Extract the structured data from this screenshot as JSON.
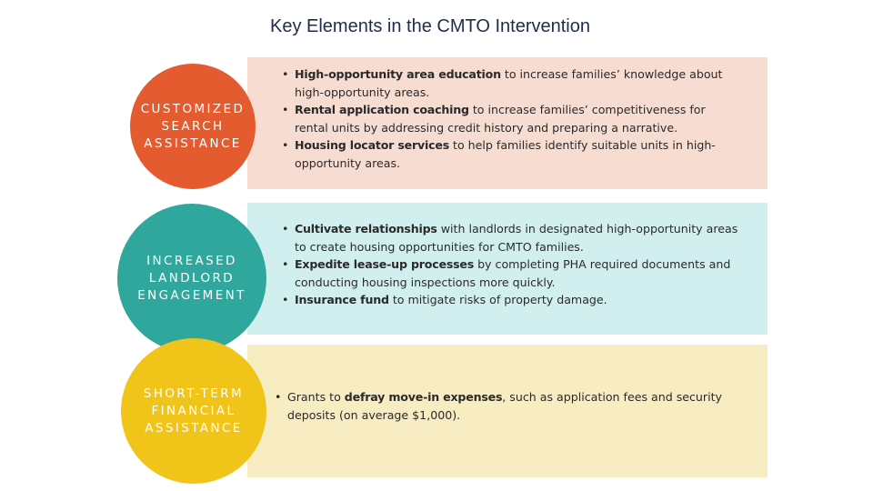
{
  "title": "Key Elements in the CMTO Intervention",
  "rows": [
    {
      "label": "CUSTOMIZED\nSEARCH\nASSISTANCE",
      "color": "#e35b2e",
      "band_color": "#f7dcd2",
      "bullets": [
        {
          "bold": "High-opportunity area education",
          "text": " to increase families’ knowledge about high-opportunity areas."
        },
        {
          "bold": "Rental application coaching",
          "text": " to increase families’ competitiveness for rental units by addressing credit history and preparing a narrative."
        },
        {
          "bold": "Housing locator services",
          "text": " to help families identify suitable units in high-opportunity areas."
        }
      ]
    },
    {
      "label": "INCREASED\nLANDLORD\nENGAGEMENT",
      "color": "#2fa79d",
      "band_color": "#d2efef",
      "bullets": [
        {
          "bold": "Cultivate relationships",
          "text": " with landlords in designated high-opportunity areas to create housing opportunities for CMTO families."
        },
        {
          "bold": "Expedite lease-up processes",
          "text": " by completing PHA required documents and conducting housing inspections more quickly."
        },
        {
          "bold": "Insurance fund",
          "text": " to mitigate risks of property damage."
        }
      ]
    },
    {
      "label": "SHORT-TERM\nFINANCIAL\nASSISTANCE",
      "color": "#f0c419",
      "band_color": "#f8ecc2",
      "bullets": [
        {
          "prefix": "Grants to ",
          "bold": "defray move-in expenses",
          "text": ", such as application fees and security deposits (on average $1,000)."
        }
      ]
    }
  ]
}
